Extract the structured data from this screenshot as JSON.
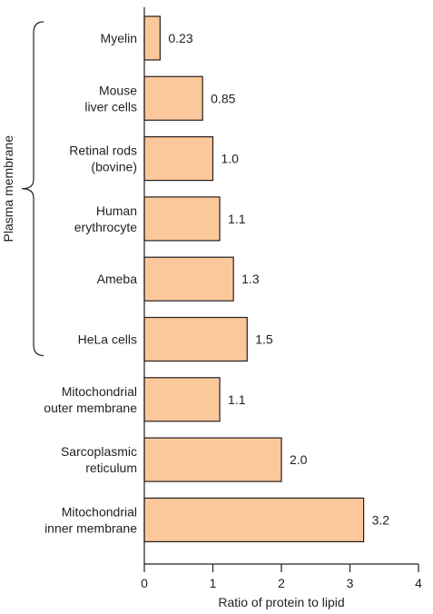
{
  "chart_data": {
    "type": "bar",
    "orientation": "horizontal",
    "categories": [
      [
        "Myelin"
      ],
      [
        "Mouse",
        "liver cells"
      ],
      [
        "Retinal rods",
        "(bovine)"
      ],
      [
        "Human",
        "erythrocyte"
      ],
      [
        "Ameba"
      ],
      [
        "HeLa cells"
      ],
      [
        "Mitochondrial",
        "outer membrane"
      ],
      [
        "Sarcoplasmic",
        "reticulum"
      ],
      [
        "Mitochondrial",
        "inner membrane"
      ]
    ],
    "values": [
      0.23,
      0.85,
      1.0,
      1.1,
      1.3,
      1.5,
      1.1,
      2.0,
      3.2
    ],
    "value_labels": [
      "0.23",
      "0.85",
      "1.0",
      "1.1",
      "1.3",
      "1.5",
      "1.1",
      "2.0",
      "3.2"
    ],
    "xlabel": "Ratio of protein to lipid",
    "xlim": [
      0,
      4
    ],
    "xticks": [
      0,
      1,
      2,
      3,
      4
    ],
    "grid": false,
    "bar_color": "#fcc89b",
    "bar_edge_color": "#231f20",
    "group_bracket": {
      "label": "Plasma membrane",
      "spans_categories": [
        0,
        5
      ]
    }
  }
}
